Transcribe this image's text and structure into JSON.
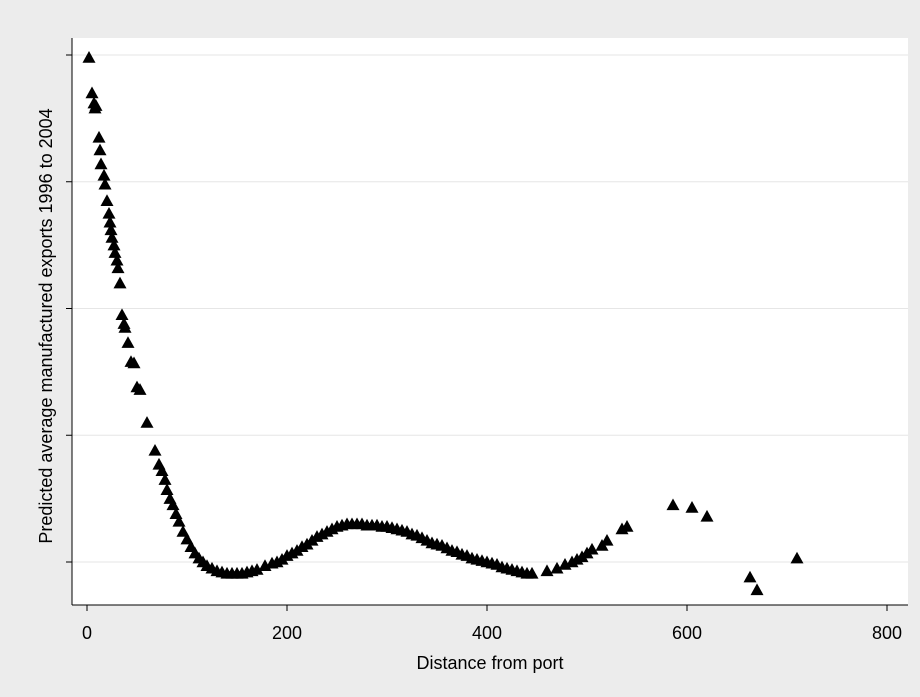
{
  "chart_data": {
    "type": "scatter",
    "title": "",
    "xlabel": "Distance from port",
    "ylabel": "Predicted average manufactured exports 1996 to 2004",
    "xlim": [
      0,
      800
    ],
    "x_ticks": [
      "0",
      "200",
      "400",
      "600",
      "800"
    ],
    "x_tick_values": [
      0,
      200,
      400,
      600,
      800
    ],
    "y_tick_values": [
      0,
      1,
      2,
      3,
      4
    ],
    "y_tick_labels": [
      "",
      "",
      "",
      "",
      ""
    ],
    "ylim": [
      -0.35,
      4.05
    ],
    "grid": "horizontal",
    "marker": "triangle",
    "colors": {
      "background": "#ececec",
      "plot_area": "#ffffff",
      "marker": "#000000",
      "grid": "#e6e6e6"
    },
    "points": [
      [
        2,
        3.98
      ],
      [
        5,
        3.7
      ],
      [
        7,
        3.62
      ],
      [
        8,
        3.58
      ],
      [
        9,
        3.6
      ],
      [
        12,
        3.35
      ],
      [
        13,
        3.25
      ],
      [
        14,
        3.14
      ],
      [
        17,
        3.05
      ],
      [
        18,
        2.98
      ],
      [
        20,
        2.85
      ],
      [
        22,
        2.75
      ],
      [
        23,
        2.68
      ],
      [
        24,
        2.62
      ],
      [
        25,
        2.56
      ],
      [
        27,
        2.5
      ],
      [
        28,
        2.44
      ],
      [
        30,
        2.38
      ],
      [
        31,
        2.32
      ],
      [
        33,
        2.2
      ],
      [
        35,
        1.95
      ],
      [
        37,
        1.88
      ],
      [
        38,
        1.85
      ],
      [
        41,
        1.73
      ],
      [
        44,
        1.58
      ],
      [
        47,
        1.57
      ],
      [
        50,
        1.38
      ],
      [
        53,
        1.36
      ],
      [
        60,
        1.1
      ],
      [
        68,
        0.88
      ],
      [
        72,
        0.77
      ],
      [
        75,
        0.72
      ],
      [
        78,
        0.65
      ],
      [
        80,
        0.57
      ],
      [
        83,
        0.5
      ],
      [
        86,
        0.45
      ],
      [
        89,
        0.38
      ],
      [
        92,
        0.32
      ],
      [
        96,
        0.24
      ],
      [
        100,
        0.18
      ],
      [
        104,
        0.12
      ],
      [
        108,
        0.07
      ],
      [
        112,
        0.03
      ],
      [
        116,
        0.0
      ],
      [
        120,
        -0.03
      ],
      [
        125,
        -0.05
      ],
      [
        130,
        -0.07
      ],
      [
        135,
        -0.08
      ],
      [
        140,
        -0.09
      ],
      [
        145,
        -0.09
      ],
      [
        150,
        -0.09
      ],
      [
        155,
        -0.09
      ],
      [
        160,
        -0.08
      ],
      [
        165,
        -0.07
      ],
      [
        170,
        -0.06
      ],
      [
        178,
        -0.03
      ],
      [
        185,
        -0.01
      ],
      [
        190,
        0.0
      ],
      [
        195,
        0.02
      ],
      [
        200,
        0.05
      ],
      [
        205,
        0.07
      ],
      [
        210,
        0.09
      ],
      [
        215,
        0.12
      ],
      [
        220,
        0.14
      ],
      [
        225,
        0.17
      ],
      [
        230,
        0.2
      ],
      [
        235,
        0.22
      ],
      [
        240,
        0.24
      ],
      [
        245,
        0.26
      ],
      [
        250,
        0.28
      ],
      [
        255,
        0.29
      ],
      [
        260,
        0.3
      ],
      [
        265,
        0.3
      ],
      [
        270,
        0.3
      ],
      [
        275,
        0.3
      ],
      [
        280,
        0.29
      ],
      [
        285,
        0.29
      ],
      [
        290,
        0.29
      ],
      [
        295,
        0.28
      ],
      [
        300,
        0.28
      ],
      [
        305,
        0.27
      ],
      [
        310,
        0.26
      ],
      [
        315,
        0.25
      ],
      [
        320,
        0.24
      ],
      [
        325,
        0.22
      ],
      [
        330,
        0.21
      ],
      [
        335,
        0.19
      ],
      [
        340,
        0.17
      ],
      [
        345,
        0.15
      ],
      [
        350,
        0.14
      ],
      [
        355,
        0.13
      ],
      [
        360,
        0.11
      ],
      [
        365,
        0.09
      ],
      [
        370,
        0.08
      ],
      [
        375,
        0.06
      ],
      [
        380,
        0.05
      ],
      [
        385,
        0.03
      ],
      [
        390,
        0.02
      ],
      [
        395,
        0.01
      ],
      [
        400,
        0.0
      ],
      [
        405,
        -0.01
      ],
      [
        410,
        -0.02
      ],
      [
        415,
        -0.04
      ],
      [
        420,
        -0.05
      ],
      [
        425,
        -0.06
      ],
      [
        430,
        -0.07
      ],
      [
        435,
        -0.08
      ],
      [
        440,
        -0.09
      ],
      [
        445,
        -0.09
      ],
      [
        460,
        -0.07
      ],
      [
        470,
        -0.05
      ],
      [
        478,
        -0.02
      ],
      [
        485,
        0.0
      ],
      [
        490,
        0.02
      ],
      [
        495,
        0.04
      ],
      [
        500,
        0.07
      ],
      [
        505,
        0.1
      ],
      [
        515,
        0.13
      ],
      [
        520,
        0.17
      ],
      [
        535,
        0.26
      ],
      [
        540,
        0.28
      ],
      [
        586,
        0.45
      ],
      [
        605,
        0.43
      ],
      [
        620,
        0.36
      ],
      [
        663,
        -0.12
      ],
      [
        670,
        -0.22
      ],
      [
        710,
        0.03
      ]
    ]
  }
}
